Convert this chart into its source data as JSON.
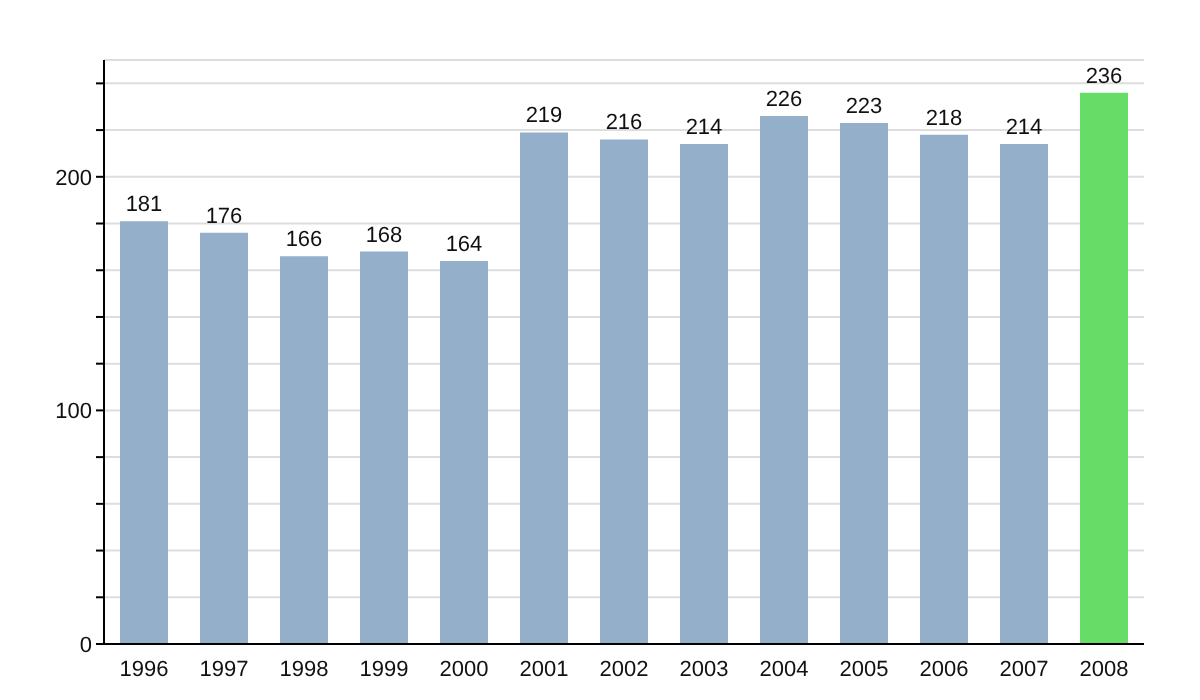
{
  "chart_data": {
    "type": "bar",
    "categories": [
      "1996",
      "1997",
      "1998",
      "1999",
      "2000",
      "2001",
      "2002",
      "2003",
      "2004",
      "2005",
      "2006",
      "2007",
      "2008"
    ],
    "values": [
      181,
      176,
      166,
      168,
      164,
      219,
      216,
      214,
      226,
      223,
      218,
      214,
      236
    ],
    "colors": [
      "#94afc9",
      "#94afc9",
      "#94afc9",
      "#94afc9",
      "#94afc9",
      "#94afc9",
      "#94afc9",
      "#94afc9",
      "#94afc9",
      "#94afc9",
      "#94afc9",
      "#94afc9",
      "#66dd66"
    ],
    "ylim": [
      0,
      250
    ],
    "yticks": [
      0,
      {
        "value": 20,
        "label": null
      },
      {
        "value": 40,
        "label": null
      },
      {
        "value": 60,
        "label": null
      },
      {
        "value": 80,
        "label": null
      },
      100,
      {
        "value": 120,
        "label": null
      },
      {
        "value": 140,
        "label": null
      },
      {
        "value": 160,
        "label": null
      },
      {
        "value": 180,
        "label": null
      },
      200,
      {
        "value": 220,
        "label": null
      },
      {
        "value": 240,
        "label": null
      }
    ],
    "grid": "y",
    "data_labels": true,
    "legend": false
  }
}
